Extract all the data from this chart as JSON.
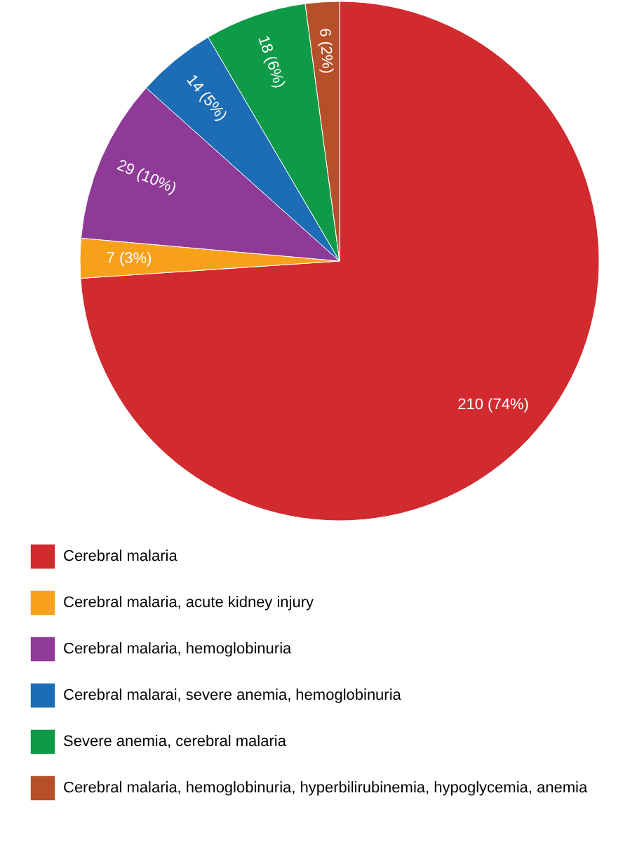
{
  "chart_data": {
    "type": "pie",
    "categories": [
      "Cerebral malaria",
      "Cerebral malaria, acute kidney injury",
      "Cerebral malaria, hemoglobinuria",
      "Cerebral malarai, severe anemia, hemoglobinuria",
      "Severe anemia, cerebral malaria",
      "Cerebral malaria, hemoglobinuria, hyperbilirubinemia, hypoglycemia, anemia"
    ],
    "values": [
      210,
      7,
      29,
      14,
      18,
      6
    ],
    "colors": [
      "#d12a2f",
      "#f7a11a",
      "#8e3a96",
      "#1c6db5",
      "#0f9a48",
      "#b5502a"
    ],
    "value_labels": [
      "210 (74%)",
      "7 (3%)",
      "29 (10%)",
      "14 (5%)",
      "18 (6%)",
      "6 (2%)"
    ],
    "legend": "bottom"
  }
}
